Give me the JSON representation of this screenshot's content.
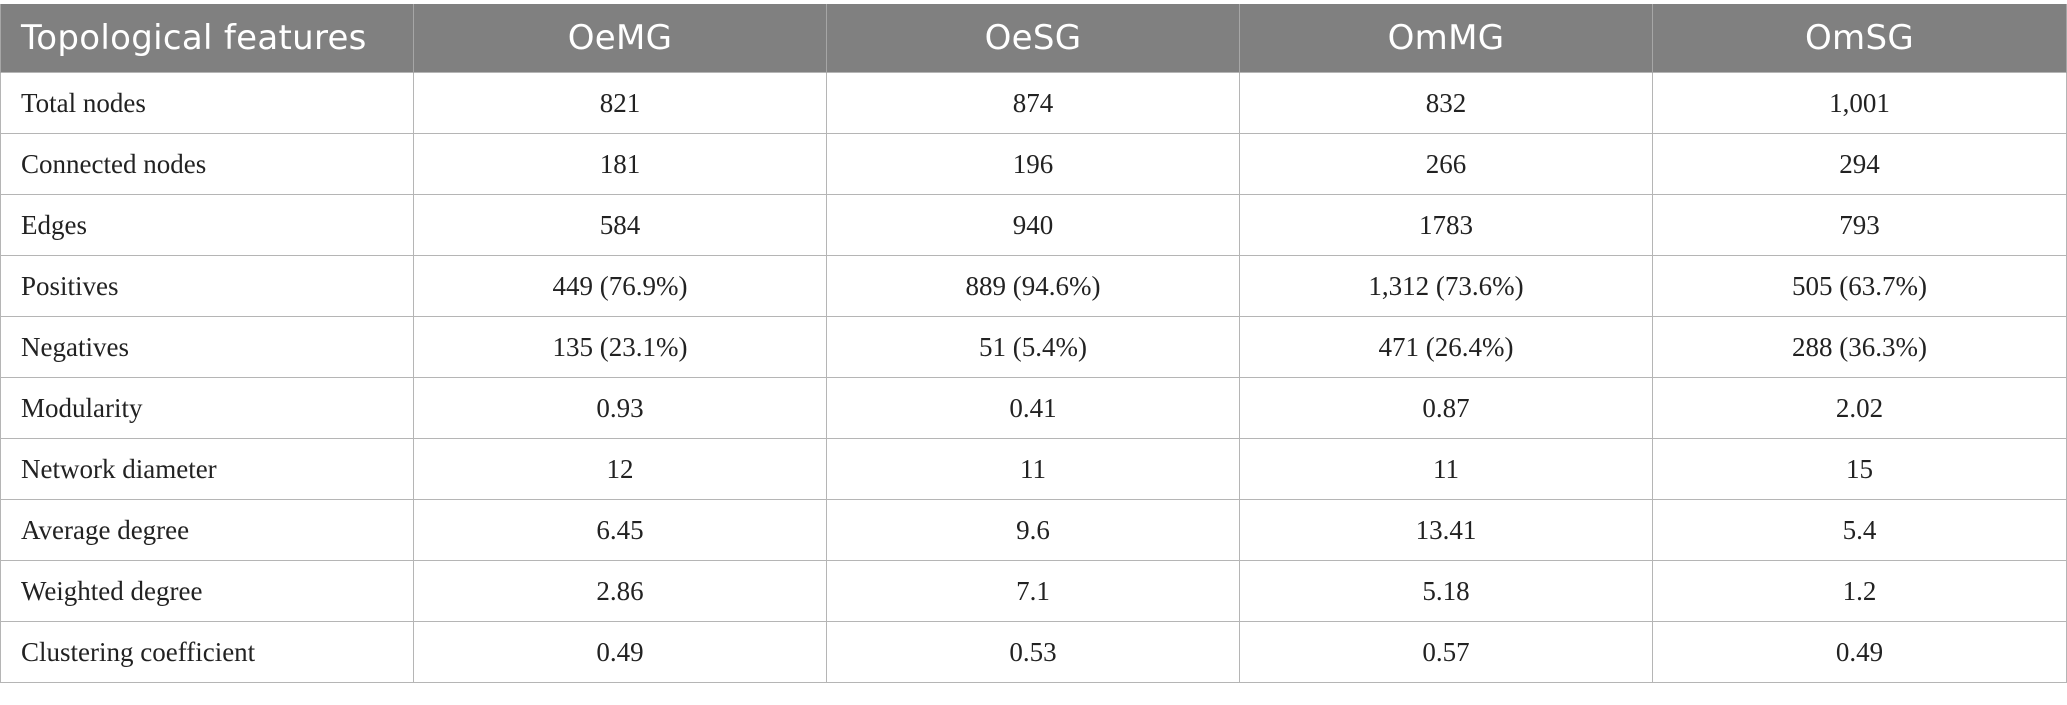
{
  "table": {
    "headers": [
      "Topological features",
      "OeMG",
      "OeSG",
      "OmMG",
      "OmSG"
    ],
    "rows": [
      [
        "Total nodes",
        "821",
        "874",
        "832",
        "1,001"
      ],
      [
        "Connected nodes",
        "181",
        "196",
        "266",
        "294"
      ],
      [
        "Edges",
        "584",
        "940",
        "1783",
        "793"
      ],
      [
        "Positives",
        "449 (76.9%)",
        "889 (94.6%)",
        "1,312 (73.6%)",
        "505 (63.7%)"
      ],
      [
        "Negatives",
        "135 (23.1%)",
        "51 (5.4%)",
        "471 (26.4%)",
        "288 (36.3%)"
      ],
      [
        "Modularity",
        "0.93",
        "0.41",
        "0.87",
        "2.02"
      ],
      [
        "Network diameter",
        "12",
        "11",
        "11",
        "15"
      ],
      [
        "Average degree",
        "6.45",
        "9.6",
        "13.41",
        "5.4"
      ],
      [
        "Weighted degree",
        "2.86",
        "7.1",
        "5.18",
        "1.2"
      ],
      [
        "Clustering coefficient",
        "0.49",
        "0.53",
        "0.57",
        "0.49"
      ]
    ]
  },
  "colors": {
    "header_bg": "#808080",
    "header_text": "#ffffff",
    "grid": "#b5b5b5"
  }
}
